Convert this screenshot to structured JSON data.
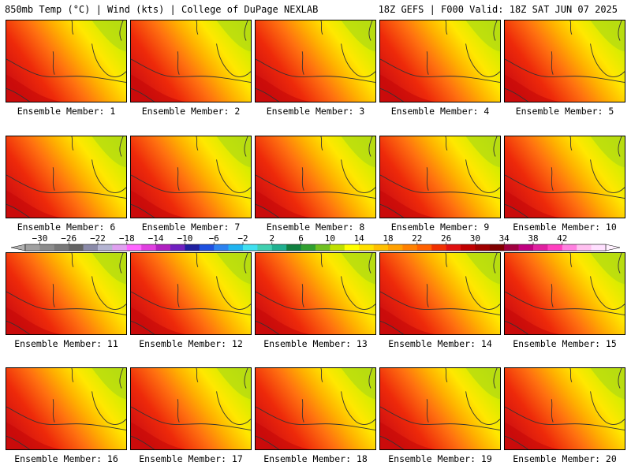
{
  "header": {
    "left": "850mb Temp (°C) | Wind (kts) | College of DuPage NEXLAB",
    "right": "18Z GEFS | F000 Valid: 18Z SAT JUN 07 2025"
  },
  "panels": [
    {
      "caption": "Ensemble Member: 1"
    },
    {
      "caption": "Ensemble Member: 2"
    },
    {
      "caption": "Ensemble Member: 3"
    },
    {
      "caption": "Ensemble Member: 4"
    },
    {
      "caption": "Ensemble Member: 5"
    },
    {
      "caption": "Ensemble Member: 6"
    },
    {
      "caption": "Ensemble Member: 7"
    },
    {
      "caption": "Ensemble Member: 8"
    },
    {
      "caption": "Ensemble Member: 9"
    },
    {
      "caption": "Ensemble Member: 10"
    },
    {
      "caption": "Ensemble Member: 11"
    },
    {
      "caption": "Ensemble Member: 12"
    },
    {
      "caption": "Ensemble Member: 13"
    },
    {
      "caption": "Ensemble Member: 14"
    },
    {
      "caption": "Ensemble Member: 15"
    },
    {
      "caption": "Ensemble Member: 16"
    },
    {
      "caption": "Ensemble Member: 17"
    },
    {
      "caption": "Ensemble Member: 18"
    },
    {
      "caption": "Ensemble Member: 19"
    },
    {
      "caption": "Ensemble Member: 20"
    }
  ],
  "colorbar": {
    "tick_labels": [
      "−30",
      "−26",
      "−22",
      "−18",
      "−14",
      "−10",
      "−6",
      "−2",
      "2",
      "6",
      "10",
      "14",
      "18",
      "22",
      "26",
      "30",
      "34",
      "38",
      "42"
    ],
    "colors": [
      "#a0a0a0",
      "#8c8c8c",
      "#787878",
      "#646464",
      "#8a8aa8",
      "#b4b4d2",
      "#e0a0f0",
      "#ff66ff",
      "#e040e0",
      "#b020c0",
      "#7020c0",
      "#2020a0",
      "#1e50e0",
      "#2c82f0",
      "#20b4f0",
      "#40e0f0",
      "#40d0b0",
      "#20b090",
      "#108040",
      "#30a030",
      "#70c020",
      "#c0e000",
      "#ffff00",
      "#ffe000",
      "#ffc000",
      "#ffa000",
      "#ff8000",
      "#ff6000",
      "#f03000",
      "#e01010",
      "#c00000",
      "#a00000",
      "#800000",
      "#a00040",
      "#c00080",
      "#e020a0",
      "#ff40c0",
      "#ff80e0",
      "#ffc0f0",
      "#ffe0ff"
    ]
  }
}
